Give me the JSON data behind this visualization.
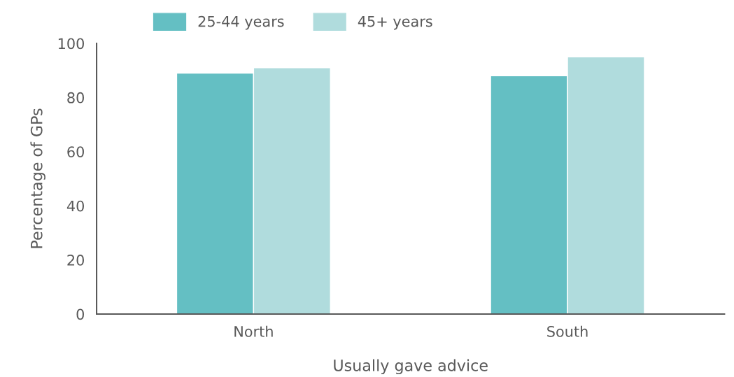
{
  "chart_data": {
    "type": "bar",
    "xlabel": "Usually gave advice",
    "ylabel": "Percentage of GPs",
    "categories": [
      "North",
      "South"
    ],
    "series": [
      {
        "name": "25-44 years",
        "color": "#64bfc3",
        "values": [
          89,
          88
        ]
      },
      {
        "name": "45+ years",
        "color": "#b0dcdd",
        "values": [
          91,
          95
        ]
      }
    ],
    "ylim": [
      0,
      100
    ],
    "yticks": [
      0,
      20,
      40,
      60,
      80,
      100
    ],
    "legend": "top"
  }
}
